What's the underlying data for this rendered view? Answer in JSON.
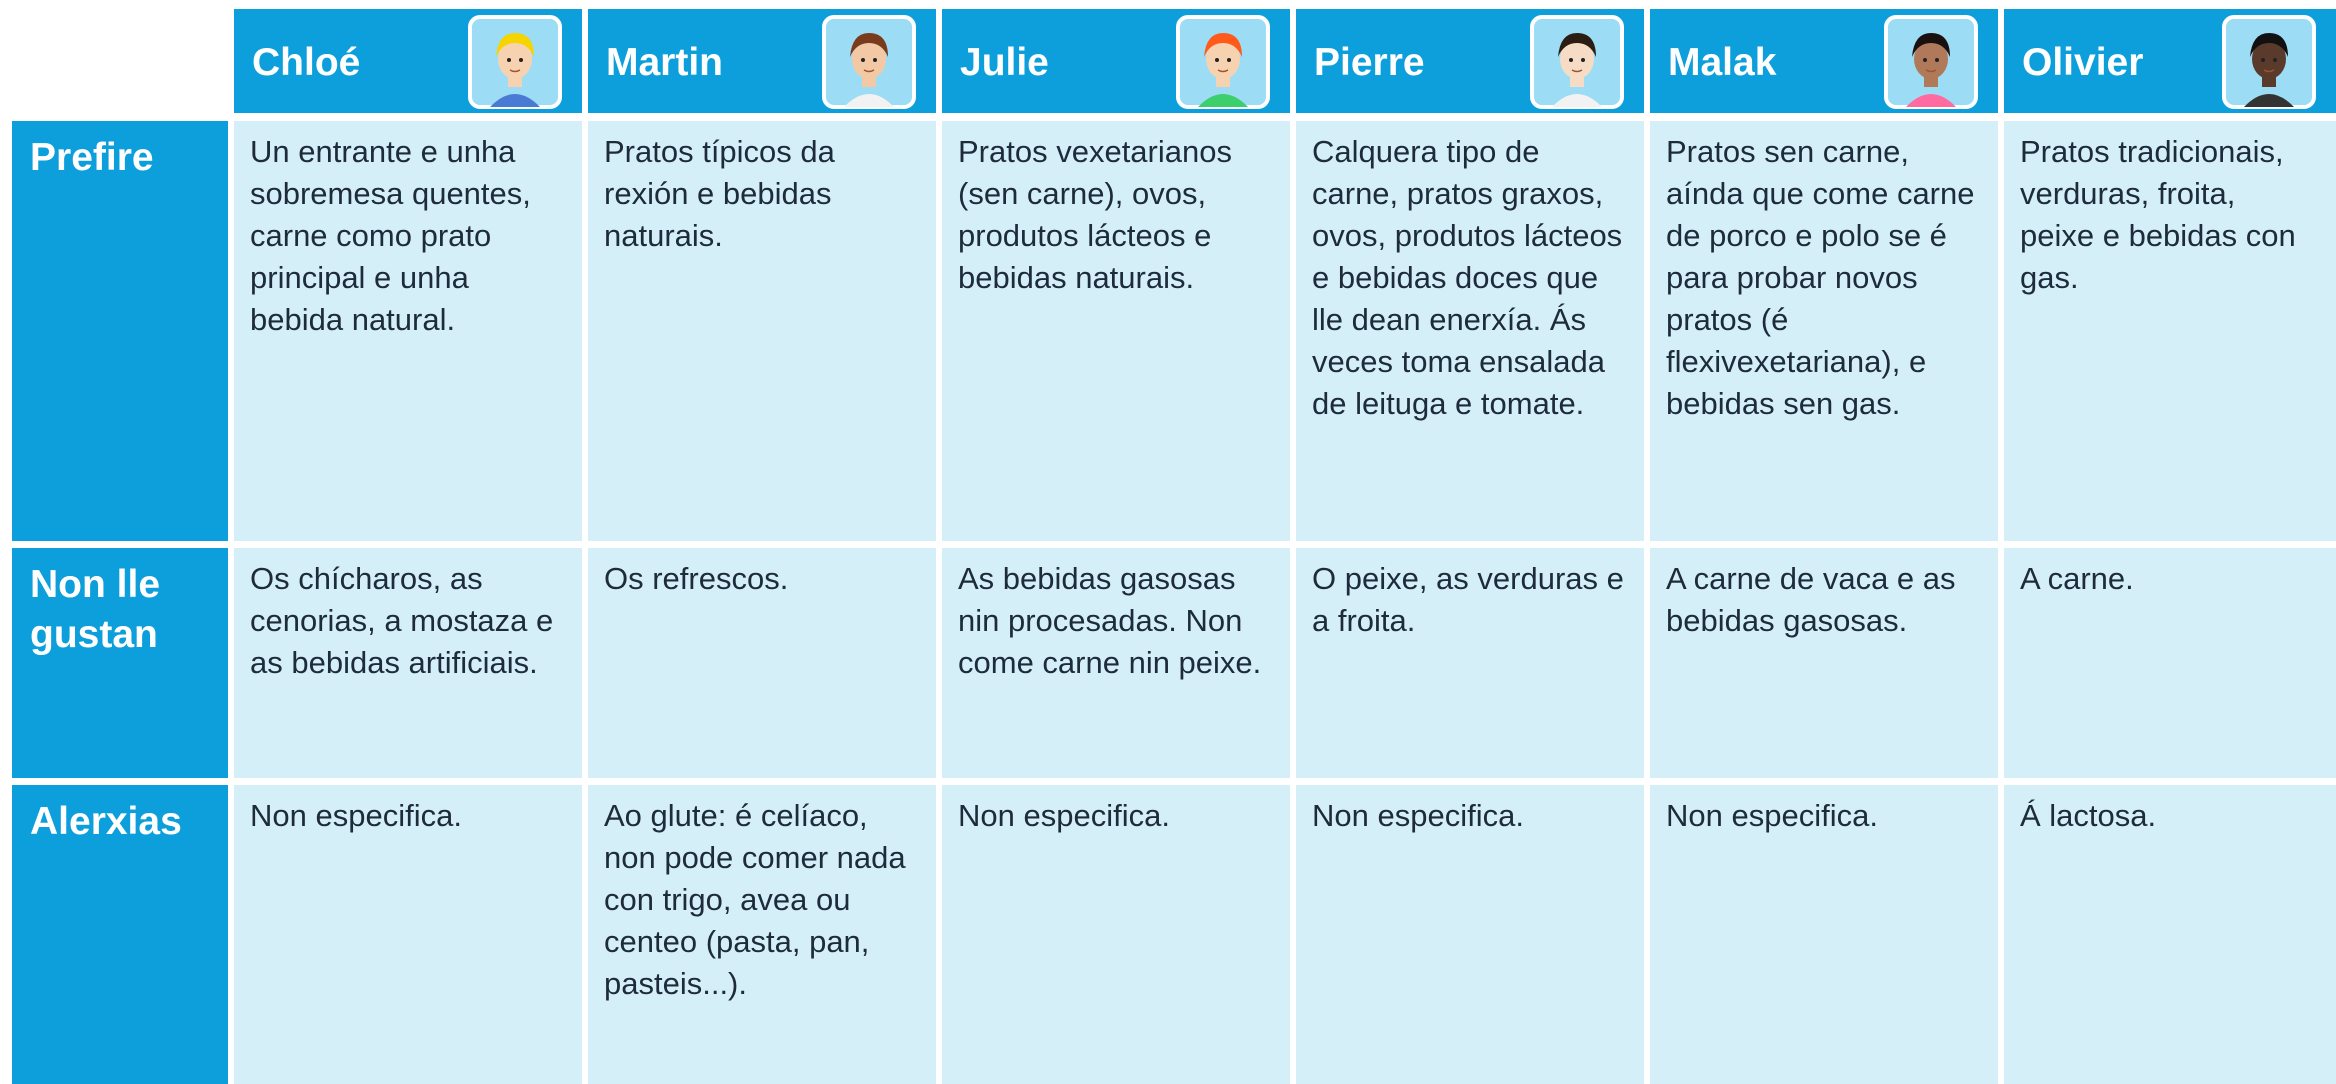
{
  "header": {
    "names": [
      "Chloé",
      "Martin",
      "Julie",
      "Pierre",
      "Malak",
      "Olivier"
    ]
  },
  "rows": [
    {
      "label": "Prefire",
      "cells": [
        "Un entrante e unha sobremesa quentes, carne como prato principal e unha bebida natural.",
        "Pratos típicos da rexión e bebidas naturais.",
        "Pratos vexetarianos (sen carne), ovos, produtos lácteos e bebidas naturais.",
        "Calquera tipo de carne, pratos graxos, ovos, produtos lácteos e bebidas doces que lle dean enerxía. Ás veces toma ensalada de leituga e tomate.",
        "Pratos sen carne, aínda que come carne de porco e polo se é para probar novos pratos (é flexivexetariana), e bebidas sen gas.",
        "Pratos tradicionais, verduras, froita, peixe e bebidas con gas."
      ]
    },
    {
      "label": "Non lle gustan",
      "cells": [
        "Os chícharos, as cenorias, a mostaza e as bebidas artificiais.",
        "Os refrescos.",
        "As bebidas gasosas nin procesadas. Non come carne nin peixe.",
        "O peixe, as verduras e a froita.",
        "A carne de vaca e as bebidas gasosas.",
        "A carne."
      ]
    },
    {
      "label": "Alerxias",
      "cells": [
        "Non especifica.",
        "Ao glute: é celíaco, non pode comer nada con trigo, avea ou centeo (pasta, pan, pasteis...).",
        "Non especifica.",
        "Non especifica.",
        "Non especifica.",
        "Á lactosa."
      ]
    }
  ]
}
